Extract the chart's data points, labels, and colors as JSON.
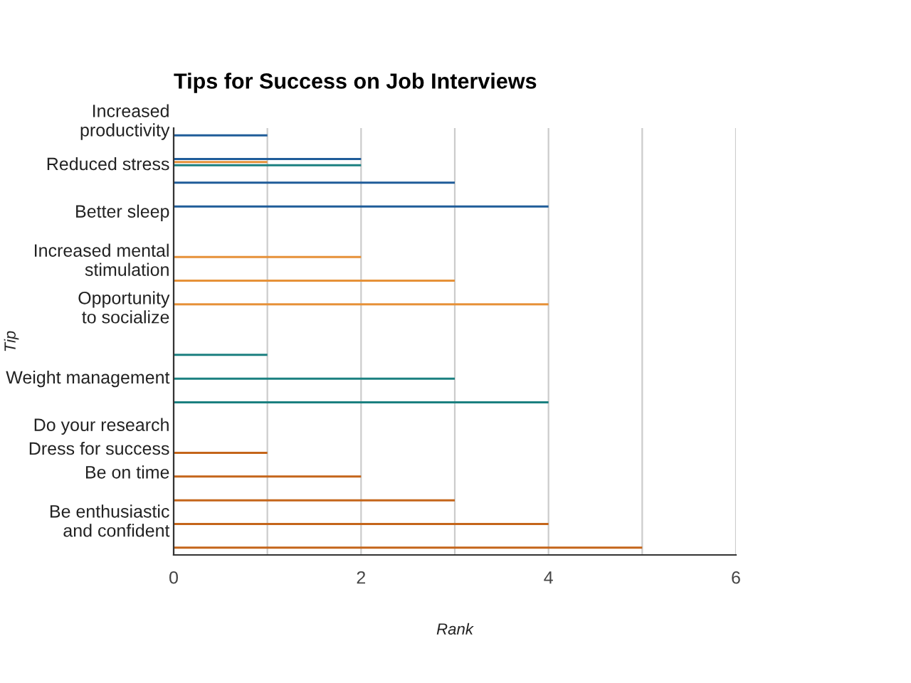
{
  "chart_data": {
    "type": "bar",
    "orientation": "horizontal",
    "title": "Tips for Success on Job Interviews",
    "xlabel": "Rank",
    "ylabel": "Tip",
    "categories": [
      "Increased productivity",
      "Reduced stress",
      null,
      "Better sleep",
      null,
      "Increased mental stimulation",
      null,
      "Opportunity to socialize",
      null,
      null,
      "Weight management",
      null,
      "Do your research",
      "Dress for success",
      "Be on time",
      null,
      "Be enthusiastic and confident",
      null
    ],
    "series": [
      {
        "color": "#1f5c99",
        "values": [
          1,
          2,
          3,
          4,
          null,
          null,
          null,
          null,
          null,
          null,
          null,
          null,
          null,
          null,
          null,
          null,
          null,
          null
        ]
      },
      {
        "color": "#e69138",
        "values": [
          null,
          1,
          null,
          null,
          null,
          2,
          3,
          4,
          null,
          null,
          null,
          null,
          null,
          null,
          null,
          null,
          null,
          null
        ]
      },
      {
        "color": "#1b8080",
        "values": [
          null,
          2,
          null,
          null,
          null,
          null,
          null,
          null,
          null,
          1,
          3,
          4,
          null,
          null,
          null,
          null,
          null,
          null
        ]
      },
      {
        "color": "#c4651a",
        "values": [
          null,
          null,
          null,
          null,
          null,
          null,
          null,
          null,
          null,
          null,
          null,
          null,
          null,
          1,
          2,
          3,
          4,
          5
        ]
      }
    ],
    "xlim": [
      0,
      6
    ],
    "xticks": [
      0,
      {
        "value": 1,
        "label": null
      },
      2,
      {
        "value": 3,
        "label": null
      },
      4,
      {
        "value": 5,
        "label": null
      },
      6
    ],
    "grid": "x",
    "legend": false
  }
}
